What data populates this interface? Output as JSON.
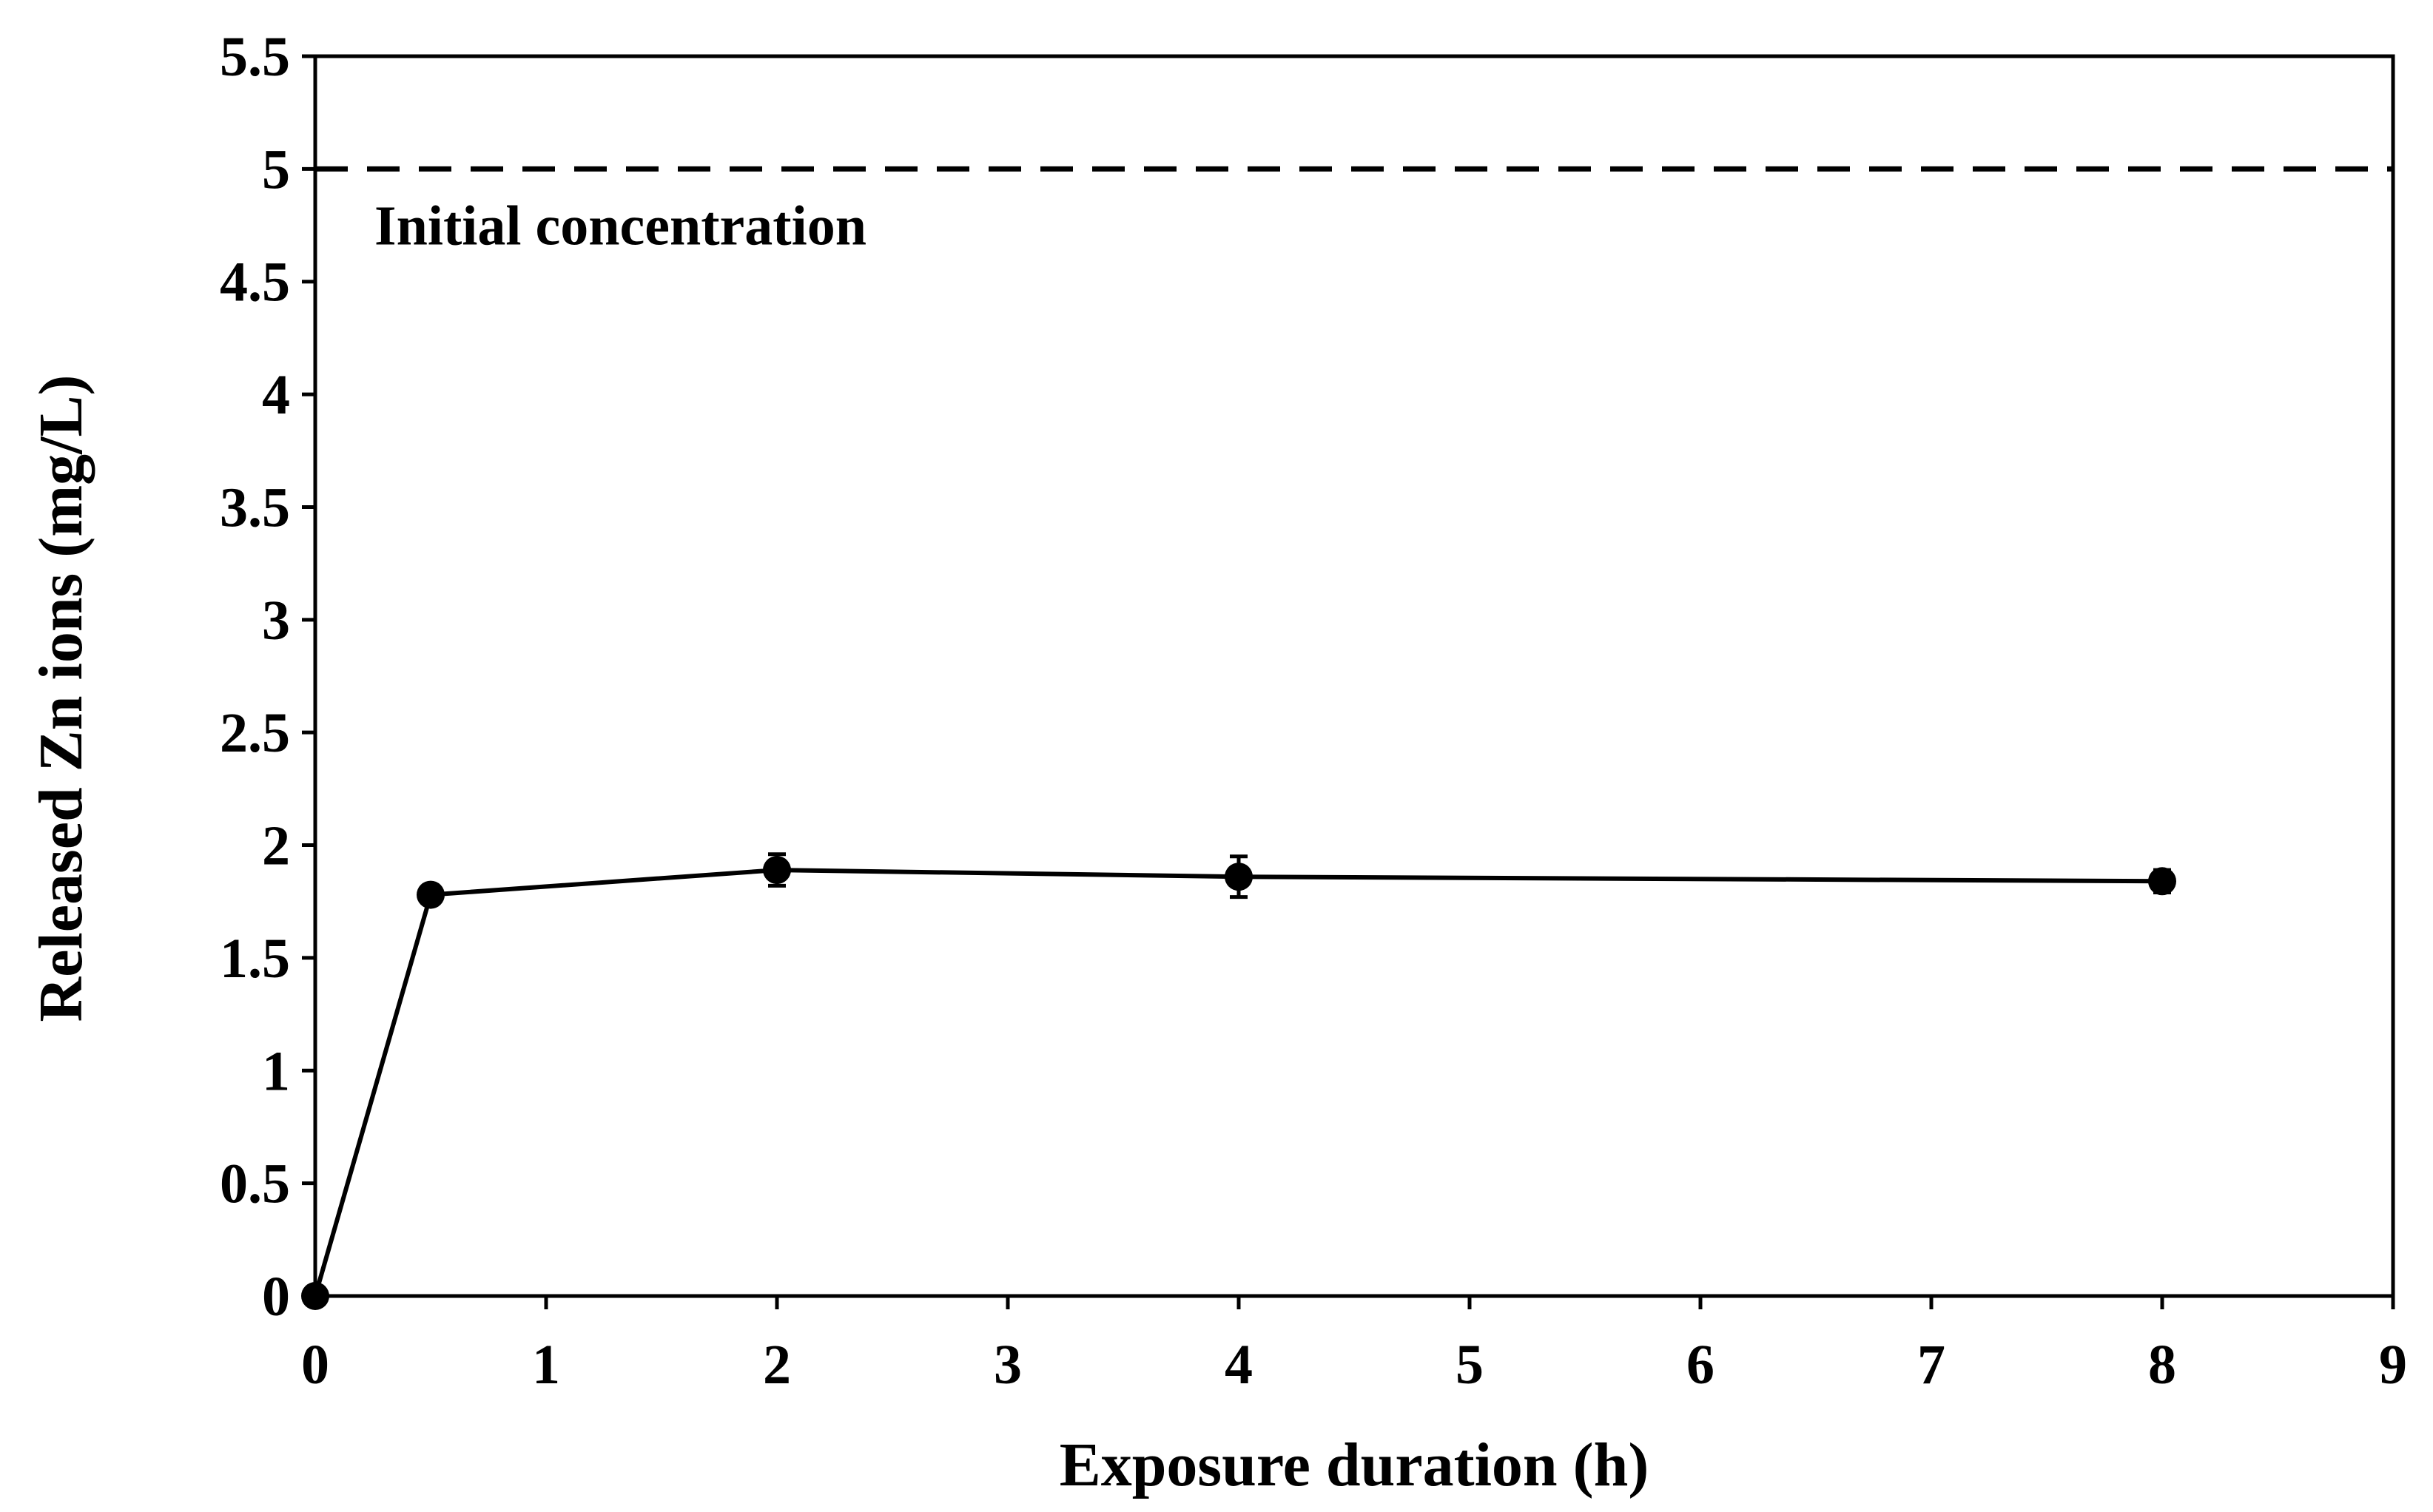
{
  "chart_data": {
    "type": "line",
    "title": "",
    "xlabel": "Exposure duration (h)",
    "ylabel": "Released Zn ions (mg/L)",
    "xlim": [
      0,
      9
    ],
    "ylim": [
      0,
      5.5
    ],
    "xticks": [
      0,
      1,
      2,
      3,
      4,
      5,
      6,
      7,
      8,
      9
    ],
    "xtick_labels": [
      "0",
      "1",
      "2",
      "3",
      "4",
      "5",
      "6",
      "7",
      "8",
      "9"
    ],
    "yticks": [
      0,
      0.5,
      1,
      1.5,
      2,
      2.5,
      3,
      3.5,
      4,
      4.5,
      5,
      5.5
    ],
    "ytick_labels": [
      "0",
      "0.5",
      "1",
      "1.5",
      "2",
      "2.5",
      "3",
      "3.5",
      "4",
      "4.5",
      "5",
      "5.5"
    ],
    "grid": false,
    "series": [
      {
        "name": "Released Zn ions",
        "x": [
          0,
          0.5,
          2,
          4,
          8
        ],
        "y": [
          0,
          1.78,
          1.89,
          1.86,
          1.84
        ],
        "yerr": [
          0,
          0.04,
          0.07,
          0.09,
          0.05
        ],
        "color": "#000000"
      }
    ],
    "reference_lines": [
      {
        "y": 5,
        "style": "dashed",
        "label": "Initial concentration",
        "color": "#000000"
      }
    ]
  }
}
